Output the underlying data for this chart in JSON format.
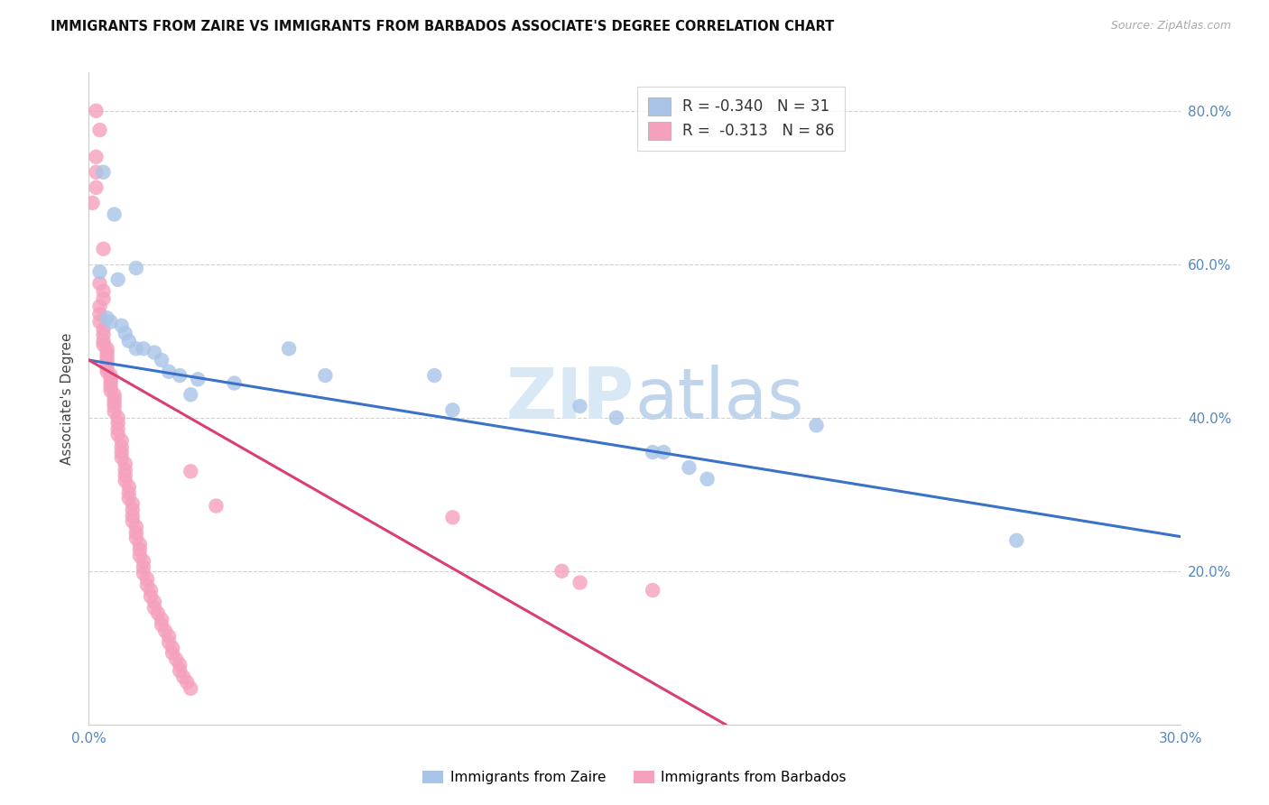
{
  "title": "IMMIGRANTS FROM ZAIRE VS IMMIGRANTS FROM BARBADOS ASSOCIATE'S DEGREE CORRELATION CHART",
  "source": "Source: ZipAtlas.com",
  "ylabel": "Associate's Degree",
  "x_min": 0.0,
  "x_max": 0.3,
  "y_min": 0.0,
  "y_max": 0.85,
  "zaire_color": "#a8c4e8",
  "barbados_color": "#f5a0bc",
  "zaire_line_color": "#3a72c8",
  "barbados_line_color": "#d94070",
  "zaire_R": -0.34,
  "zaire_N": 31,
  "barbados_R": -0.313,
  "barbados_N": 86,
  "zaire_line_x": [
    0.0,
    0.3
  ],
  "zaire_line_y": [
    0.475,
    0.245
  ],
  "barbados_line_x": [
    0.0,
    0.175
  ],
  "barbados_line_y": [
    0.475,
    0.0
  ],
  "zaire_points": [
    [
      0.004,
      0.72
    ],
    [
      0.007,
      0.665
    ],
    [
      0.013,
      0.595
    ],
    [
      0.003,
      0.59
    ],
    [
      0.008,
      0.58
    ],
    [
      0.005,
      0.53
    ],
    [
      0.006,
      0.525
    ],
    [
      0.009,
      0.52
    ],
    [
      0.01,
      0.51
    ],
    [
      0.011,
      0.5
    ],
    [
      0.013,
      0.49
    ],
    [
      0.015,
      0.49
    ],
    [
      0.018,
      0.485
    ],
    [
      0.02,
      0.475
    ],
    [
      0.022,
      0.46
    ],
    [
      0.025,
      0.455
    ],
    [
      0.03,
      0.45
    ],
    [
      0.04,
      0.445
    ],
    [
      0.055,
      0.49
    ],
    [
      0.065,
      0.455
    ],
    [
      0.095,
      0.455
    ],
    [
      0.1,
      0.41
    ],
    [
      0.135,
      0.415
    ],
    [
      0.145,
      0.4
    ],
    [
      0.155,
      0.355
    ],
    [
      0.158,
      0.355
    ],
    [
      0.165,
      0.335
    ],
    [
      0.17,
      0.32
    ],
    [
      0.2,
      0.39
    ],
    [
      0.255,
      0.24
    ],
    [
      0.028,
      0.43
    ]
  ],
  "barbados_points": [
    [
      0.002,
      0.8
    ],
    [
      0.003,
      0.775
    ],
    [
      0.002,
      0.74
    ],
    [
      0.002,
      0.72
    ],
    [
      0.002,
      0.7
    ],
    [
      0.001,
      0.68
    ],
    [
      0.004,
      0.62
    ],
    [
      0.003,
      0.575
    ],
    [
      0.004,
      0.565
    ],
    [
      0.004,
      0.555
    ],
    [
      0.003,
      0.545
    ],
    [
      0.003,
      0.535
    ],
    [
      0.003,
      0.525
    ],
    [
      0.004,
      0.515
    ],
    [
      0.004,
      0.508
    ],
    [
      0.004,
      0.5
    ],
    [
      0.004,
      0.495
    ],
    [
      0.005,
      0.49
    ],
    [
      0.005,
      0.485
    ],
    [
      0.005,
      0.48
    ],
    [
      0.005,
      0.475
    ],
    [
      0.005,
      0.47
    ],
    [
      0.005,
      0.465
    ],
    [
      0.005,
      0.46
    ],
    [
      0.006,
      0.455
    ],
    [
      0.006,
      0.45
    ],
    [
      0.006,
      0.445
    ],
    [
      0.006,
      0.44
    ],
    [
      0.006,
      0.435
    ],
    [
      0.007,
      0.43
    ],
    [
      0.007,
      0.425
    ],
    [
      0.007,
      0.42
    ],
    [
      0.007,
      0.415
    ],
    [
      0.007,
      0.408
    ],
    [
      0.008,
      0.4
    ],
    [
      0.008,
      0.393
    ],
    [
      0.008,
      0.385
    ],
    [
      0.008,
      0.378
    ],
    [
      0.009,
      0.37
    ],
    [
      0.009,
      0.362
    ],
    [
      0.009,
      0.355
    ],
    [
      0.009,
      0.348
    ],
    [
      0.01,
      0.34
    ],
    [
      0.01,
      0.332
    ],
    [
      0.01,
      0.325
    ],
    [
      0.01,
      0.318
    ],
    [
      0.011,
      0.31
    ],
    [
      0.011,
      0.302
    ],
    [
      0.011,
      0.295
    ],
    [
      0.012,
      0.288
    ],
    [
      0.012,
      0.28
    ],
    [
      0.012,
      0.272
    ],
    [
      0.012,
      0.265
    ],
    [
      0.013,
      0.258
    ],
    [
      0.013,
      0.25
    ],
    [
      0.013,
      0.243
    ],
    [
      0.014,
      0.235
    ],
    [
      0.014,
      0.228
    ],
    [
      0.014,
      0.22
    ],
    [
      0.015,
      0.213
    ],
    [
      0.015,
      0.205
    ],
    [
      0.015,
      0.197
    ],
    [
      0.016,
      0.19
    ],
    [
      0.016,
      0.182
    ],
    [
      0.017,
      0.175
    ],
    [
      0.017,
      0.167
    ],
    [
      0.018,
      0.16
    ],
    [
      0.018,
      0.152
    ],
    [
      0.019,
      0.145
    ],
    [
      0.02,
      0.137
    ],
    [
      0.02,
      0.13
    ],
    [
      0.021,
      0.122
    ],
    [
      0.022,
      0.115
    ],
    [
      0.022,
      0.107
    ],
    [
      0.023,
      0.1
    ],
    [
      0.023,
      0.093
    ],
    [
      0.024,
      0.085
    ],
    [
      0.025,
      0.078
    ],
    [
      0.025,
      0.07
    ],
    [
      0.026,
      0.062
    ],
    [
      0.027,
      0.055
    ],
    [
      0.028,
      0.047
    ],
    [
      0.1,
      0.27
    ],
    [
      0.13,
      0.2
    ],
    [
      0.135,
      0.185
    ],
    [
      0.155,
      0.175
    ],
    [
      0.028,
      0.33
    ],
    [
      0.035,
      0.285
    ]
  ]
}
